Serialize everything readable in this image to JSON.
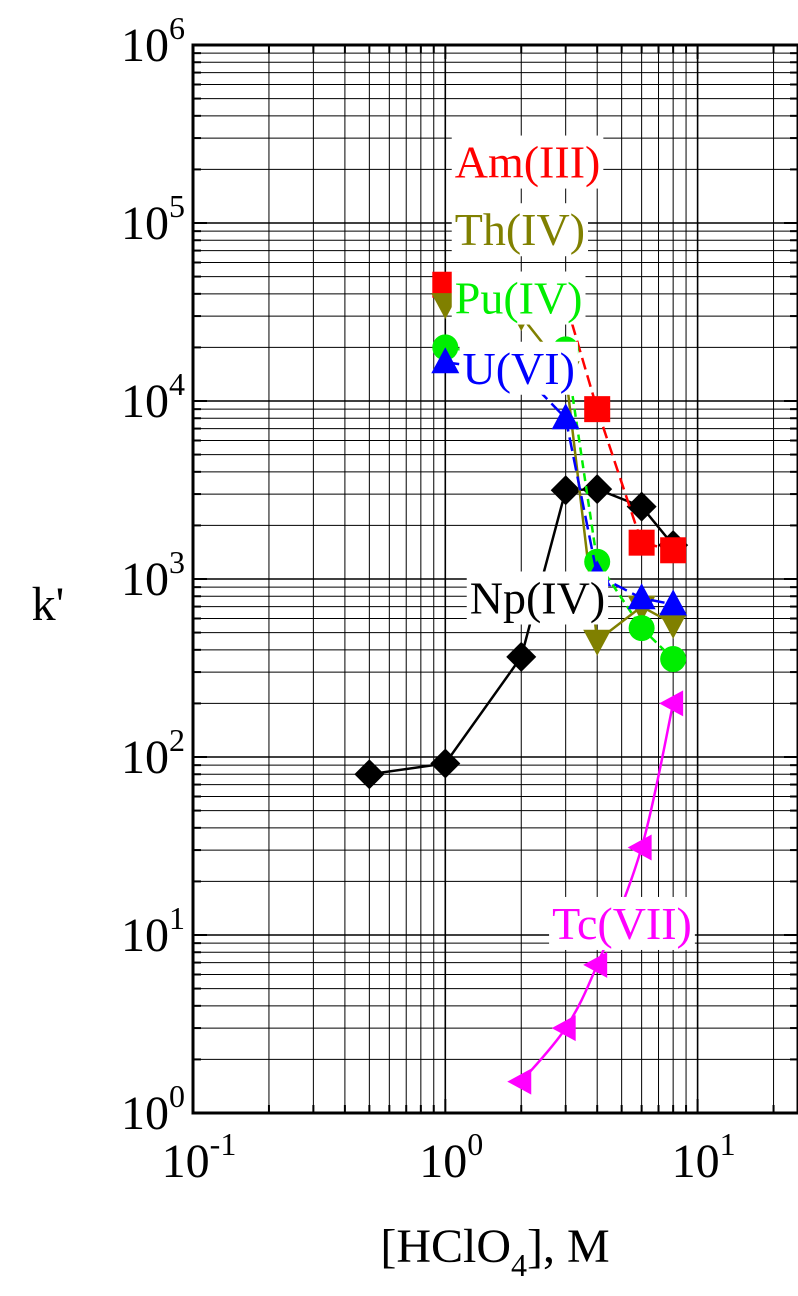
{
  "chart_data": {
    "type": "scatter",
    "xscale": "log",
    "yscale": "log",
    "xlim": [
      0.1,
      25
    ],
    "ylim": [
      1,
      1000000
    ],
    "grid": true,
    "xlabel": {
      "prefix": "[HClO",
      "sub": "4",
      "suffix": "], M"
    },
    "ylabel": "k'",
    "xticks": [
      {
        "value": 0.1,
        "base": "10",
        "exp": "-1"
      },
      {
        "value": 1,
        "base": "10",
        "exp": "0"
      },
      {
        "value": 10,
        "base": "10",
        "exp": "1"
      }
    ],
    "yticks": [
      {
        "value": 1,
        "base": "10",
        "exp": "0"
      },
      {
        "value": 10,
        "base": "10",
        "exp": "1"
      },
      {
        "value": 100,
        "base": "10",
        "exp": "2"
      },
      {
        "value": 1000,
        "base": "10",
        "exp": "3"
      },
      {
        "value": 10000,
        "base": "10",
        "exp": "4"
      },
      {
        "value": 100000,
        "base": "10",
        "exp": "5"
      },
      {
        "value": 1000000,
        "base": "10",
        "exp": "6"
      }
    ],
    "series": [
      {
        "name": "Np(IV)",
        "color": "#000000",
        "marker": "diamond",
        "dash": "",
        "smooth": false,
        "label": {
          "x": 1.25,
          "y": 640
        },
        "x": [
          0.5,
          1,
          2,
          3,
          4,
          6,
          8
        ],
        "y": [
          80,
          92,
          365,
          3150,
          3200,
          2550,
          1550
        ]
      },
      {
        "name": "Am(III)",
        "color": "#ff0000",
        "marker": "square",
        "dash": "12,6",
        "smooth": false,
        "label": {
          "x": 1.09,
          "y": 180000
        },
        "x": [
          1,
          2,
          3,
          4,
          6,
          8
        ],
        "y": [
          45000,
          40000,
          36000,
          9000,
          1600,
          1450
        ]
      },
      {
        "name": "Th(IV)",
        "color": "#808000",
        "marker": "triangle-down",
        "dash": "",
        "smooth": false,
        "label": {
          "x": 1.09,
          "y": 75000
        },
        "x": [
          1,
          2,
          3,
          4,
          6,
          8
        ],
        "y": [
          35000,
          30000,
          14500,
          450,
          700,
          560
        ]
      },
      {
        "name": "Pu(IV)",
        "color": "#00ee00",
        "marker": "circle",
        "dash": "8,5",
        "smooth": false,
        "label": {
          "x": 1.09,
          "y": 31000
        },
        "x": [
          1,
          2,
          3,
          4,
          6,
          8
        ],
        "y": [
          20000,
          17500,
          19500,
          1250,
          530,
          355
        ]
      },
      {
        "name": "U(VI)",
        "color": "#0000ff",
        "marker": "triangle-up",
        "dash": "14,6",
        "smooth": false,
        "label": {
          "x": 1.17,
          "y": 12500
        },
        "x": [
          1,
          2,
          3,
          4,
          6,
          8
        ],
        "y": [
          16500,
          14500,
          8000,
          1050,
          780,
          720
        ]
      },
      {
        "name": "Tc(VII)",
        "color": "#ff00ff",
        "marker": "triangle-left",
        "dash": "",
        "smooth": true,
        "label": {
          "x": 2.65,
          "y": 9.5
        },
        "x": [
          2,
          3,
          4,
          6,
          8
        ],
        "y": [
          1.5,
          3.0,
          6.8,
          31,
          200
        ]
      }
    ]
  }
}
